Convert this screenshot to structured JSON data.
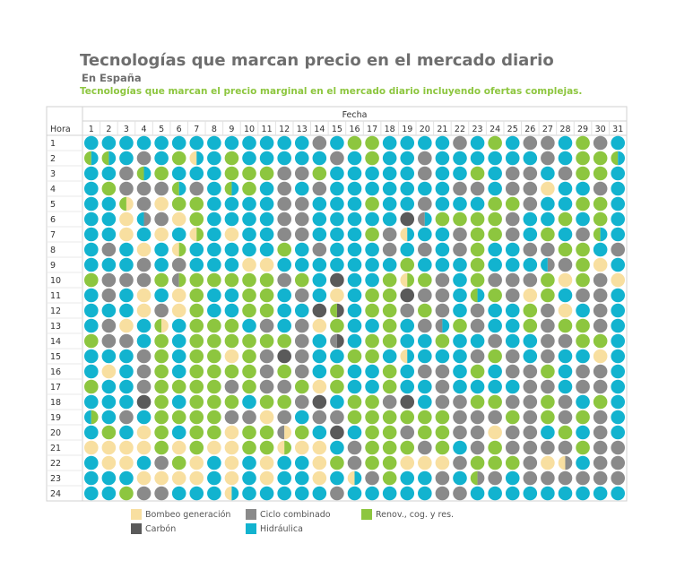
{
  "header": {
    "title": "Tecnologías que marcan precio en el mercado diario",
    "subtitle": "En España",
    "caption": "Tecnologías que marcan el precio marginal en el mercado diario incluyendo ofertas complejas."
  },
  "chart_data": {
    "type": "heatmap",
    "row_header": "Hora",
    "col_header": "Fecha",
    "days": [
      "1",
      "2",
      "3",
      "4",
      "5",
      "6",
      "7",
      "8",
      "9",
      "10",
      "11",
      "12",
      "13",
      "14",
      "15",
      "16",
      "17",
      "18",
      "19",
      "20",
      "21",
      "22",
      "23",
      "24",
      "25",
      "26",
      "27",
      "28",
      "29",
      "30",
      "31"
    ],
    "hours": [
      "1",
      "2",
      "3",
      "4",
      "5",
      "6",
      "7",
      "8",
      "9",
      "10",
      "11",
      "12",
      "13",
      "14",
      "15",
      "16",
      "17",
      "18",
      "19",
      "20",
      "21",
      "22",
      "23",
      "24"
    ],
    "technologies": {
      "B": {
        "label": "Bombeo generación",
        "color": "#f8dfa0"
      },
      "G": {
        "label": "Ciclo combinado",
        "color": "#8a8a8a"
      },
      "R": {
        "label": "Renov., cog. y res.",
        "color": "#8dc63f"
      },
      "C": {
        "label": "Carbón",
        "color": "#5a5a5a"
      },
      "H": {
        "label": "Hidráulica",
        "color": "#12b3cf"
      }
    },
    "legend_order": [
      "B",
      "G",
      "R",
      "C",
      "H"
    ],
    "grid": [
      "HHHHHHHHHHHHHGHRRHHHHGHRHGGHRGH",
      "RRHGHRBHRHHHHHGHRHHGHHHHHHGHRRR",
      "HHGGRHHHRRRGGRHHHHHGHHRHGGHGRRH",
      "HRGGGRGHHRHGHGHHHHHHHGGHGGBHHGH",
      "HHRGBRRHHHHGGHHHRHHGHHHRRGHHRRH",
      "HHBHGBRHHHHGGHHHHHCHRRRRGHHRHRH",
      "HHBHBHBHBHHGGHHHRGBHHGRRGHRHGRH",
      "HGHBHRHHHHHRHGHHHGHGHGRHHGGRRHG",
      "HHHGHGHHHBBHHHHHHHRHHHRHHHGGRBH",
      "RGGGRRRRRRRGRHCHHRBRGHRGGGRBRGB",
      "HGHBHBRHHRRHGHBHRRCGGHGRGBRHGGH",
      "HHHBGBRHHRRHHCHHRRGRGHGHHRGBHGH",
      "HGBHRHRRRHGHGBRHHRHGGRGHHRGRRGH",
      "RGGHRHRRRRRRGHCHRRHHRHHGHHGGRRH",
      "HHHGRHRRBRGCGHHRRHBHHHGRGHGHHBH",
      "HBHGRHRRRRGRGHRHHRHGGHRHGGRHGGH",
      "RHHGRRRRGRGGRBRHHRHHGHHHHGGHGGH",
      "HHHCRHRRRHRRGCHRRGCHGGRRGGRGHRH",
      "RHGHRRRRGGBGHGGRRRRRRGGGRGRGRGH",
      "HRHBRHRRBRRGRHCHRRGRRGGBGGHRHGH",
      "BBBBRBRBBRRRBBHGRRRGRHGRGGGGRGG",
      "HBBHGRBHBHBHHBRGRRBBBGRRRGBGHGG",
      "HHHBBBBHBHBHHBHBGRHHGHGGHGGGGGG",
      "HHRGGHHHBHHHHHGHHHHHGGHHHHHHHHH"
    ],
    "split_cells": [
      {
        "hour": 2,
        "day": 1,
        "left": "R",
        "right": "H"
      },
      {
        "hour": 2,
        "day": 2,
        "left": "R",
        "right": "H"
      },
      {
        "hour": 2,
        "day": 7,
        "left": "B",
        "right": "H"
      },
      {
        "hour": 2,
        "day": 31,
        "left": "R",
        "right": "H"
      },
      {
        "hour": 3,
        "day": 4,
        "left": "R",
        "right": "H"
      },
      {
        "hour": 4,
        "day": 6,
        "left": "R",
        "right": "H"
      },
      {
        "hour": 4,
        "day": 9,
        "left": "R",
        "right": "H"
      },
      {
        "hour": 5,
        "day": 3,
        "left": "R",
        "right": "B"
      },
      {
        "hour": 6,
        "day": 4,
        "left": "H",
        "right": "G"
      },
      {
        "hour": 6,
        "day": 20,
        "left": "G",
        "right": "H"
      },
      {
        "hour": 7,
        "day": 7,
        "left": "B",
        "right": "R"
      },
      {
        "hour": 7,
        "day": 19,
        "left": "B",
        "right": "H"
      },
      {
        "hour": 7,
        "day": 30,
        "left": "R",
        "right": "H"
      },
      {
        "hour": 8,
        "day": 6,
        "left": "B",
        "right": "R"
      },
      {
        "hour": 9,
        "day": 27,
        "left": "H",
        "right": "G"
      },
      {
        "hour": 10,
        "day": 6,
        "left": "G",
        "right": "R"
      },
      {
        "hour": 10,
        "day": 19,
        "left": "B",
        "right": "R"
      },
      {
        "hour": 11,
        "day": 23,
        "left": "R",
        "right": "H"
      },
      {
        "hour": 12,
        "day": 15,
        "left": "R",
        "right": "C"
      },
      {
        "hour": 13,
        "day": 5,
        "left": "R",
        "right": "B"
      },
      {
        "hour": 13,
        "day": 21,
        "left": "G",
        "right": "H"
      },
      {
        "hour": 14,
        "day": 15,
        "left": "G",
        "right": "C"
      },
      {
        "hour": 15,
        "day": 19,
        "left": "B",
        "right": "H"
      },
      {
        "hour": 19,
        "day": 1,
        "left": "H",
        "right": "R"
      },
      {
        "hour": 20,
        "day": 12,
        "left": "G",
        "right": "B"
      },
      {
        "hour": 21,
        "day": 12,
        "left": "B",
        "right": "R"
      },
      {
        "hour": 22,
        "day": 28,
        "left": "B",
        "right": "G"
      },
      {
        "hour": 23,
        "day": 16,
        "left": "B",
        "right": "H"
      },
      {
        "hour": 23,
        "day": 23,
        "left": "R",
        "right": "G"
      },
      {
        "hour": 24,
        "day": 9,
        "left": "B",
        "right": "H"
      }
    ]
  }
}
